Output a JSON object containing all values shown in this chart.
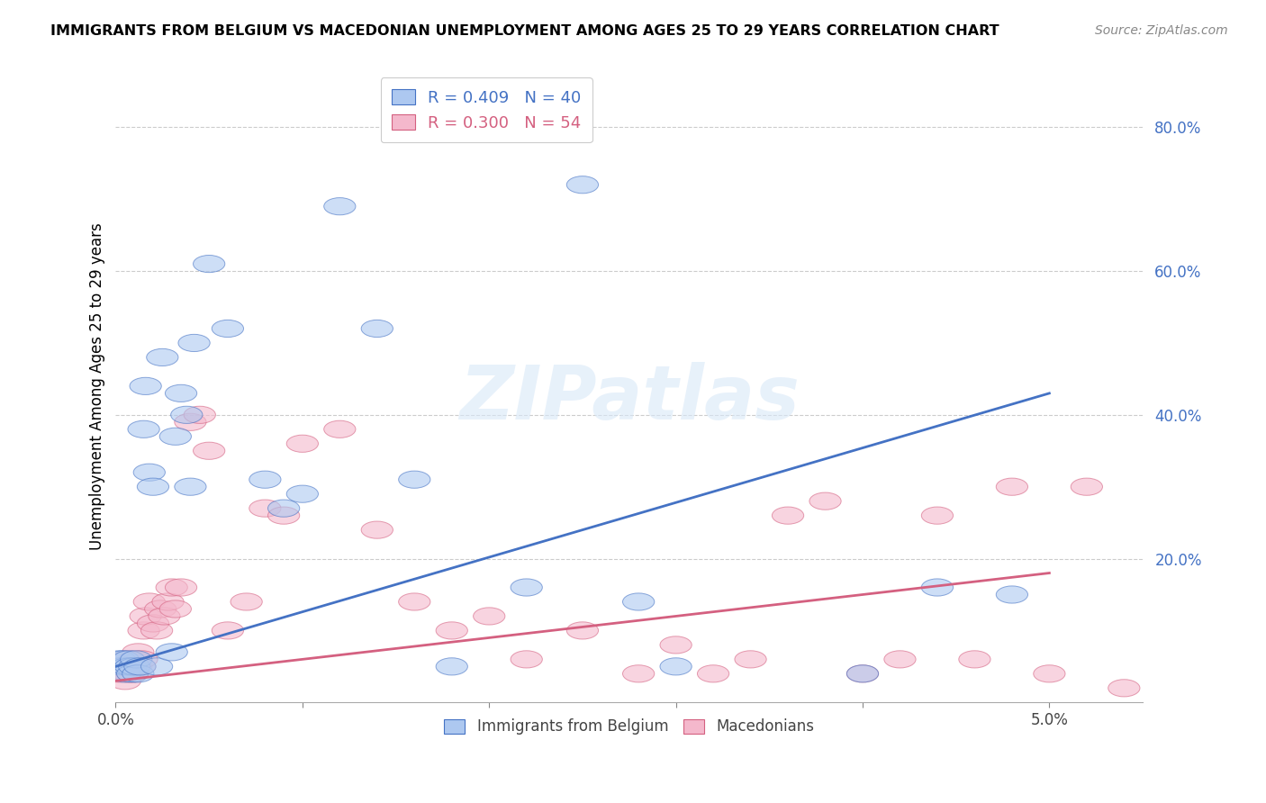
{
  "title": "IMMIGRANTS FROM BELGIUM VS MACEDONIAN UNEMPLOYMENT AMONG AGES 25 TO 29 YEARS CORRELATION CHART",
  "source": "Source: ZipAtlas.com",
  "ylabel": "Unemployment Among Ages 25 to 29 years",
  "blue_label": "Immigrants from Belgium",
  "pink_label": "Macedonians",
  "blue_R": 0.409,
  "blue_N": 40,
  "pink_R": 0.3,
  "pink_N": 54,
  "blue_color": "#adc8f0",
  "pink_color": "#f4b8cc",
  "blue_line_color": "#4472c4",
  "pink_line_color": "#d46080",
  "watermark_text": "ZIPatlas",
  "blue_line_y0": 0.05,
  "blue_line_y1": 0.43,
  "pink_line_y0": 0.03,
  "pink_line_y1": 0.18,
  "blue_x": [
    0.0002,
    0.0003,
    0.0004,
    0.0005,
    0.0006,
    0.0007,
    0.0008,
    0.0009,
    0.001,
    0.0011,
    0.0012,
    0.0013,
    0.0015,
    0.0016,
    0.0018,
    0.002,
    0.0022,
    0.0025,
    0.003,
    0.0032,
    0.0035,
    0.0038,
    0.004,
    0.0042,
    0.005,
    0.006,
    0.008,
    0.009,
    0.01,
    0.012,
    0.014,
    0.016,
    0.018,
    0.022,
    0.025,
    0.028,
    0.03,
    0.04,
    0.044,
    0.048
  ],
  "blue_y": [
    0.06,
    0.05,
    0.06,
    0.04,
    0.05,
    0.06,
    0.05,
    0.04,
    0.05,
    0.06,
    0.04,
    0.05,
    0.38,
    0.44,
    0.32,
    0.3,
    0.05,
    0.48,
    0.07,
    0.37,
    0.43,
    0.4,
    0.3,
    0.5,
    0.61,
    0.52,
    0.31,
    0.27,
    0.29,
    0.69,
    0.52,
    0.31,
    0.05,
    0.16,
    0.72,
    0.14,
    0.05,
    0.04,
    0.16,
    0.15
  ],
  "pink_x": [
    0.0001,
    0.0002,
    0.0003,
    0.0004,
    0.0005,
    0.0006,
    0.0007,
    0.0008,
    0.0009,
    0.001,
    0.0011,
    0.0012,
    0.0013,
    0.0014,
    0.0015,
    0.0016,
    0.0018,
    0.002,
    0.0022,
    0.0024,
    0.0026,
    0.0028,
    0.003,
    0.0032,
    0.0035,
    0.004,
    0.0045,
    0.005,
    0.006,
    0.007,
    0.008,
    0.009,
    0.01,
    0.012,
    0.014,
    0.016,
    0.018,
    0.02,
    0.022,
    0.025,
    0.028,
    0.03,
    0.032,
    0.034,
    0.036,
    0.038,
    0.04,
    0.042,
    0.044,
    0.046,
    0.048,
    0.05,
    0.052,
    0.054
  ],
  "pink_y": [
    0.04,
    0.05,
    0.04,
    0.05,
    0.03,
    0.06,
    0.04,
    0.05,
    0.04,
    0.06,
    0.05,
    0.07,
    0.05,
    0.06,
    0.1,
    0.12,
    0.14,
    0.11,
    0.1,
    0.13,
    0.12,
    0.14,
    0.16,
    0.13,
    0.16,
    0.39,
    0.4,
    0.35,
    0.1,
    0.14,
    0.27,
    0.26,
    0.36,
    0.38,
    0.24,
    0.14,
    0.1,
    0.12,
    0.06,
    0.1,
    0.04,
    0.08,
    0.04,
    0.06,
    0.26,
    0.28,
    0.04,
    0.06,
    0.26,
    0.06,
    0.3,
    0.04,
    0.3,
    0.02
  ],
  "xlim": [
    0.0,
    0.055
  ],
  "ylim": [
    0.0,
    0.88
  ],
  "yticks": [
    0.2,
    0.4,
    0.6,
    0.8
  ],
  "ytick_labels": [
    "20.0%",
    "40.0%",
    "60.0%",
    "80.0%"
  ],
  "xticks": [
    0.0,
    0.01,
    0.02,
    0.03,
    0.04,
    0.05
  ],
  "xtick_labels": [
    "0.0%",
    "",
    "",
    "",
    "",
    "5.0%"
  ],
  "background_color": "#ffffff",
  "grid_color": "#cccccc",
  "title_fontsize": 11.5,
  "source_fontsize": 10,
  "axis_label_fontsize": 12,
  "tick_fontsize": 12,
  "legend_fontsize": 13
}
